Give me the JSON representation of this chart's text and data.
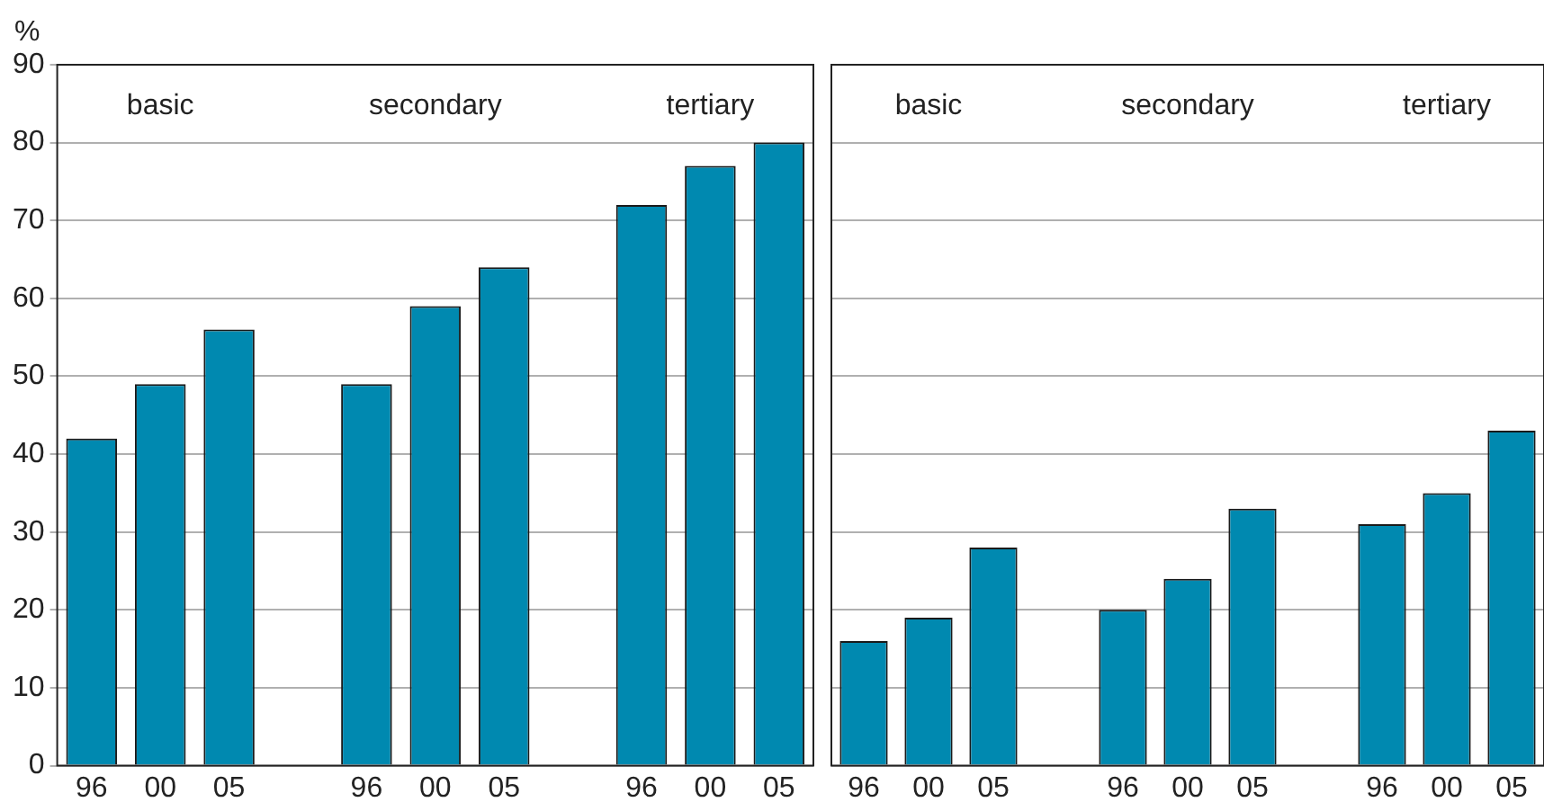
{
  "chart_data": [
    {
      "type": "bar",
      "ylabel": "%",
      "categories": [
        "96",
        "00",
        "05",
        null,
        "96",
        "00",
        "05",
        null,
        "96",
        "00",
        "05"
      ],
      "values": [
        42,
        49,
        56,
        null,
        49,
        59,
        64,
        null,
        72,
        77,
        80
      ],
      "color": "#0089b0",
      "ylim": [
        0,
        90
      ],
      "yticks": [
        0,
        10,
        20,
        30,
        40,
        50,
        60,
        70,
        80,
        90
      ],
      "grid": "y",
      "annotations": [
        "basic",
        "secondary",
        "tertiary"
      ]
    },
    {
      "type": "bar",
      "categories": [
        "96",
        "00",
        "05",
        null,
        "96",
        "00",
        "05",
        null,
        "96",
        "00",
        "05"
      ],
      "values": [
        16,
        19,
        28,
        null,
        20,
        24,
        33,
        null,
        31,
        35,
        43
      ],
      "color": "#0089b0",
      "ylim": [
        0,
        90
      ],
      "yticks": [
        0,
        10,
        20,
        30,
        40,
        50,
        60,
        70,
        80,
        90
      ],
      "grid": "y",
      "tick_labels": "x",
      "annotations": [
        "basic",
        "secondary",
        "tertiary"
      ]
    }
  ]
}
